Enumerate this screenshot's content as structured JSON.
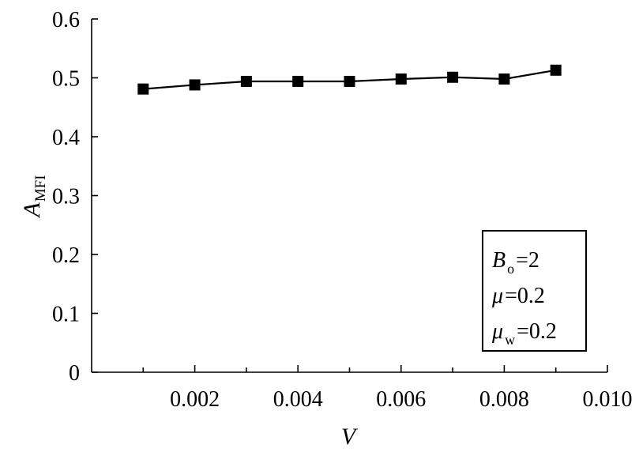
{
  "chart_data": {
    "type": "line",
    "title": "",
    "xlabel": "V",
    "ylabel": {
      "base": "A",
      "sub": "MFI"
    },
    "xlim": [
      0,
      0.01
    ],
    "ylim": [
      0,
      0.6
    ],
    "x_ticks": [
      0.002,
      0.004,
      0.006,
      0.008,
      0.01
    ],
    "x_tick_labels": [
      "0.002",
      "0.004",
      "0.006",
      "0.008",
      "0.010"
    ],
    "y_ticks": [
      0,
      0.1,
      0.2,
      0.3,
      0.4,
      0.5,
      0.6
    ],
    "y_tick_labels": [
      "0",
      "0.1",
      "0.2",
      "0.3",
      "0.4",
      "0.5",
      "0.6"
    ],
    "grid": false,
    "legend": "none",
    "marker": "square",
    "color": "#000000",
    "series": [
      {
        "x": [
          0.001,
          0.002,
          0.003,
          0.004,
          0.005,
          0.006,
          0.007,
          0.008,
          0.009
        ],
        "y": [
          0.481,
          0.488,
          0.494,
          0.494,
          0.494,
          0.498,
          0.501,
          0.498,
          0.513
        ]
      }
    ],
    "annotation": {
      "position": "lower-right",
      "lines": [
        {
          "symbol": "B",
          "sub": "o",
          "eq": "=",
          "value": "2"
        },
        {
          "symbol": "μ",
          "sub": "",
          "eq": "=",
          "value": "0.2"
        },
        {
          "symbol": "μ",
          "sub": "w",
          "eq": "=",
          "value": "0.2"
        }
      ]
    }
  }
}
